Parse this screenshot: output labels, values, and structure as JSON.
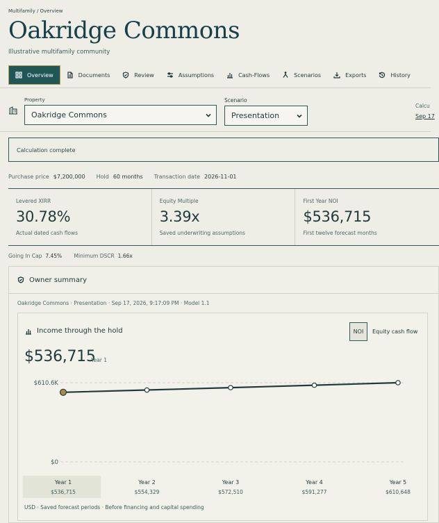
{
  "breadcrumb": "Multifamily / Overview",
  "title": "Oakridge Commons",
  "subtitle": "Illustrative multifamily community",
  "tabs": [
    {
      "label": "Overview",
      "icon": "grid-icon",
      "active": true
    },
    {
      "label": "Documents",
      "icon": "document-icon"
    },
    {
      "label": "Review",
      "icon": "shield-check-icon"
    },
    {
      "label": "Assumptions",
      "icon": "sliders-icon"
    },
    {
      "label": "Cash-Flows",
      "icon": "bar-chart-icon"
    },
    {
      "label": "Scenarios",
      "icon": "branch-icon"
    },
    {
      "label": "Exports",
      "icon": "download-icon"
    },
    {
      "label": "History",
      "icon": "history-icon"
    }
  ],
  "property": {
    "label": "Property",
    "value": "Oakridge Commons"
  },
  "scenario": {
    "label": "Scenario",
    "value": "Presentation"
  },
  "calculated": {
    "label": "Calcu",
    "value": "Sep 17"
  },
  "status": "Calculation complete",
  "facts": {
    "purchase_label": "Purchase price",
    "purchase_value": "$7,200,000",
    "hold_label": "Hold",
    "hold_value": "60 months",
    "date_label": "Transaction date",
    "date_value": "2026-11-01"
  },
  "kpis": [
    {
      "label": "Levered XIRR",
      "value": "30.78%",
      "note": "Actual dated cash flows"
    },
    {
      "label": "Equity Multiple",
      "value": "3.39x",
      "note": "Saved underwriting assumptions"
    },
    {
      "label": "First Year NOI",
      "value": "$536,715",
      "note": "First twelve forecast months"
    }
  ],
  "minor": {
    "cap_label": "Going In Cap",
    "cap_value": "7.45%",
    "dscr_label": "Minimum DSCR",
    "dscr_value": "1.66x"
  },
  "owner": {
    "title": "Owner summary",
    "meta": "Oakridge Commons · Presentation · Sep 17, 2026, 9:17:09 PM · Model 1.1"
  },
  "chart_card": {
    "title": "Income through the hold",
    "toggle_on": "NOI",
    "toggle_off": "Equity cash flow",
    "big_value": "$536,715",
    "big_sub": "Year 1",
    "footnote": "USD · Saved forecast periods · Before financing and capital spending"
  },
  "colors": {
    "accent": "#1f5656",
    "gold": "#b99e55",
    "line": "#1f3a3a",
    "marker": "#a78a4a"
  },
  "chart_data": {
    "type": "line",
    "categories": [
      "Year 1",
      "Year 2",
      "Year 3",
      "Year 4",
      "Year 5"
    ],
    "value_labels": [
      "$536,715",
      "$554,329",
      "$572,510",
      "$591,277",
      "$610,648"
    ],
    "values": [
      536715,
      554329,
      572510,
      591277,
      610648
    ],
    "ylim": [
      0,
      610648
    ],
    "ytick_labels": [
      "$610.6K",
      "$0"
    ],
    "highlight_index": 0,
    "grid": true
  }
}
